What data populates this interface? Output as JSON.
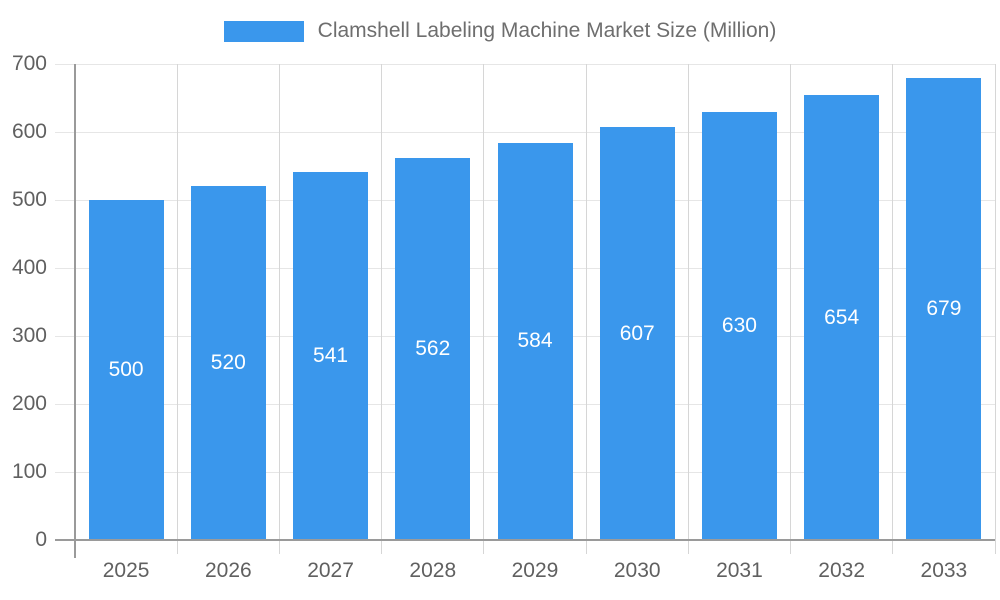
{
  "chart_data": {
    "type": "bar",
    "title": "",
    "legend": {
      "label": "Clamshell Labeling Machine Market Size (Million)",
      "position": "top"
    },
    "categories": [
      "2025",
      "2026",
      "2027",
      "2028",
      "2029",
      "2030",
      "2031",
      "2032",
      "2033"
    ],
    "values": [
      500,
      520,
      541,
      562,
      584,
      607,
      630,
      654,
      679
    ],
    "xlabel": "",
    "ylabel": "",
    "ylim": [
      0,
      700
    ],
    "ytick_step": 100,
    "yticks": [
      0,
      100,
      200,
      300,
      400,
      500,
      600,
      700
    ],
    "grid": true,
    "bar_value_labels_visible": true,
    "colors": {
      "bar": "#3a97ec",
      "bar_label": "#ffffff",
      "axis_line": "#9a9a9a",
      "grid_h": "#e6e6e6",
      "grid_v": "#d6d6d6",
      "tick_label": "#606060",
      "legend_text": "#6e6e6e",
      "background": "#ffffff"
    }
  }
}
